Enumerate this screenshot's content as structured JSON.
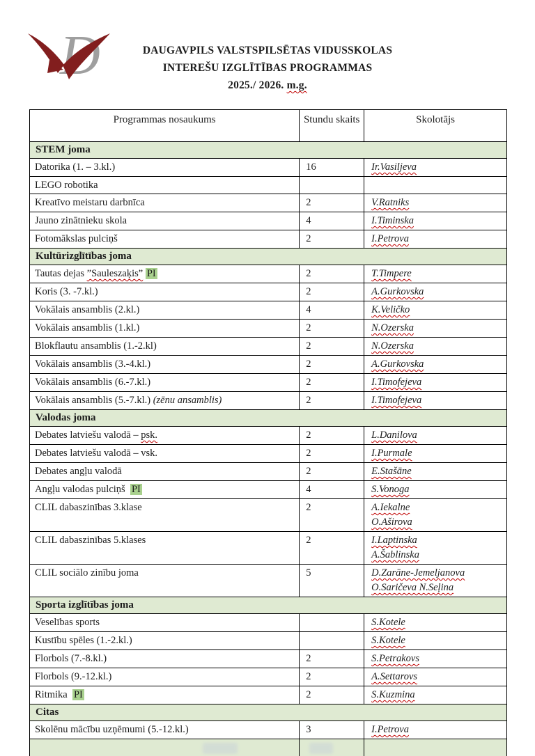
{
  "header": {
    "title_line1": "DAUGAVPILS VALSTSPILSĒTAS VIDUSSKOLAS",
    "title_line2": "INTEREŠU IZGLĪTĪBAS PROGRAMMAS",
    "year_prefix": "2025./ 2026. ",
    "year_suffix": "m.g."
  },
  "logo": {
    "name": "vd-school-logo",
    "maroon": "#821e1e",
    "gray": "#9f9f9f"
  },
  "colors": {
    "section_bg": "#dfead2",
    "pi_highlight": "#a9d18e",
    "squiggle_red": "#c00000",
    "border": "#000000"
  },
  "table": {
    "headers": [
      "Programmas nosaukums",
      "Stundu skaits",
      "Skolotājs"
    ],
    "rows": [
      {
        "type": "section",
        "label": "STEM joma"
      },
      {
        "type": "item",
        "segments": [
          {
            "text": "Datorika (1. – 3.kl.)",
            "style": "plain"
          }
        ],
        "hours": "16",
        "teachers": [
          "Ir.Vasiljeva"
        ]
      },
      {
        "type": "item",
        "segments": [
          {
            "text": "LEGO robotika",
            "style": "plain"
          }
        ],
        "hours": "",
        "teachers": []
      },
      {
        "type": "item",
        "segments": [
          {
            "text": "Kreatīvo meistaru darbnīca",
            "style": "plain"
          }
        ],
        "hours": "2",
        "teachers": [
          "V.Ratniks"
        ]
      },
      {
        "type": "item",
        "segments": [
          {
            "text": "Jauno zinātnieku skola",
            "style": "plain"
          }
        ],
        "hours": "4",
        "teachers": [
          "I.Timinska"
        ]
      },
      {
        "type": "item",
        "segments": [
          {
            "text": "Fotomākslas pulciņš",
            "style": "plain"
          }
        ],
        "hours": "2",
        "teachers": [
          "I.Petrova"
        ]
      },
      {
        "type": "section",
        "label": "Kultūrizglītības joma"
      },
      {
        "type": "item",
        "segments": [
          {
            "text": "Tautas dejas ",
            "style": "plain"
          },
          {
            "text": "”Sauleszaķis”",
            "style": "squiggle"
          },
          {
            "text": " ",
            "style": "plain"
          },
          {
            "text": "PI",
            "style": "highlight"
          }
        ],
        "hours": "2",
        "teachers": [
          "T.Timpere"
        ]
      },
      {
        "type": "item",
        "segments": [
          {
            "text": "Koris (3. -7.kl.)",
            "style": "plain"
          }
        ],
        "hours": "2",
        "teachers": [
          "A.Gurkovska"
        ]
      },
      {
        "type": "item",
        "segments": [
          {
            "text": "Vokālais ansamblis (2.kl.)",
            "style": "plain"
          }
        ],
        "hours": "4",
        "teachers": [
          "K.Veličko"
        ]
      },
      {
        "type": "item",
        "segments": [
          {
            "text": "Vokālais ansamblis (1.kl.)",
            "style": "plain"
          }
        ],
        "hours": "2",
        "teachers": [
          "N.Ozerska"
        ]
      },
      {
        "type": "item",
        "segments": [
          {
            "text": "Blokflautu ansamblis (1.-2.kl)",
            "style": "plain"
          }
        ],
        "hours": "2",
        "teachers": [
          "N.Ozerska"
        ]
      },
      {
        "type": "item",
        "segments": [
          {
            "text": "Vokālais ansamblis (3.-4.kl.)",
            "style": "plain"
          }
        ],
        "hours": "2",
        "teachers": [
          "A.Gurkovska"
        ]
      },
      {
        "type": "item",
        "segments": [
          {
            "text": "Vokālais ansamblis (6.-7.kl.)",
            "style": "plain"
          }
        ],
        "hours": "2",
        "teachers": [
          "I.Timofejeva"
        ]
      },
      {
        "type": "item",
        "segments": [
          {
            "text": "Vokālais ansamblis (5.-7.kl.) ",
            "style": "plain"
          },
          {
            "text": "(zēnu ansamblis)",
            "style": "italic"
          }
        ],
        "hours": "2",
        "teachers": [
          "I.Timofejeva"
        ]
      },
      {
        "type": "section",
        "label": "Valodas joma"
      },
      {
        "type": "item",
        "segments": [
          {
            "text": "Debates latviešu valodā – ",
            "style": "plain"
          },
          {
            "text": "psk.",
            "style": "squiggle"
          }
        ],
        "hours": "2",
        "teachers": [
          "L.Danilova"
        ]
      },
      {
        "type": "item",
        "segments": [
          {
            "text": "Debates latviešu valodā – vsk.",
            "style": "plain"
          }
        ],
        "hours": "2",
        "teachers": [
          "I.Purmale"
        ]
      },
      {
        "type": "item",
        "segments": [
          {
            "text": "Debates angļu valodā",
            "style": "plain"
          }
        ],
        "hours": "2",
        "teachers": [
          "E.Stašāne"
        ]
      },
      {
        "type": "item",
        "segments": [
          {
            "text": "Angļu valodas pulciņš  ",
            "style": "plain"
          },
          {
            "text": "PI",
            "style": "highlight"
          }
        ],
        "hours": "4",
        "teachers": [
          "S.Vonoga"
        ]
      },
      {
        "type": "item",
        "segments": [
          {
            "text": "CLIL dabaszinības 3.klase",
            "style": "plain"
          }
        ],
        "hours": "2",
        "teachers": [
          "A.Iekalne",
          "O.Aširova"
        ]
      },
      {
        "type": "item",
        "segments": [
          {
            "text": "CLIL dabaszinības 5.klases",
            "style": "plain"
          }
        ],
        "hours": "2",
        "teachers": [
          "I.Laptinska",
          "A.Šablinska"
        ]
      },
      {
        "type": "item",
        "segments": [
          {
            "text": "CLIL sociālo zinību joma",
            "style": "plain"
          }
        ],
        "hours": "5",
        "teachers": [
          "D.Zarāne-Jemeljanova",
          "O.Saričeva N.Seļina"
        ]
      },
      {
        "type": "section",
        "label": "Sporta izglītības joma"
      },
      {
        "type": "item",
        "segments": [
          {
            "text": "Veselības sports",
            "style": "plain"
          }
        ],
        "hours": "",
        "teachers": [
          "S.Kotele"
        ]
      },
      {
        "type": "item",
        "segments": [
          {
            "text": "Kustību spēles (1.-2.kl.)",
            "style": "plain"
          }
        ],
        "hours": "",
        "teachers": [
          "S.Kotele"
        ]
      },
      {
        "type": "item",
        "segments": [
          {
            "text": "Florbols (7.-8.kl.)",
            "style": "plain"
          }
        ],
        "hours": "2",
        "teachers": [
          "S.Petrakovs"
        ]
      },
      {
        "type": "item",
        "segments": [
          {
            "text": "Florbols (9.-12.kl.)",
            "style": "plain"
          }
        ],
        "hours": "2",
        "teachers": [
          "A.Settarovs"
        ]
      },
      {
        "type": "item",
        "segments": [
          {
            "text": "Ritmika  ",
            "style": "plain"
          },
          {
            "text": "PI",
            "style": "highlight"
          }
        ],
        "hours": "2",
        "teachers": [
          "S.Kuzmina"
        ]
      },
      {
        "type": "section",
        "label": "Citas"
      },
      {
        "type": "item",
        "segments": [
          {
            "text": "Skolēnu mācību uzņēmumi (5.-12.kl.)",
            "style": "plain"
          }
        ],
        "hours": "3",
        "teachers": [
          "I.Petrova"
        ]
      },
      {
        "type": "empty"
      }
    ]
  }
}
